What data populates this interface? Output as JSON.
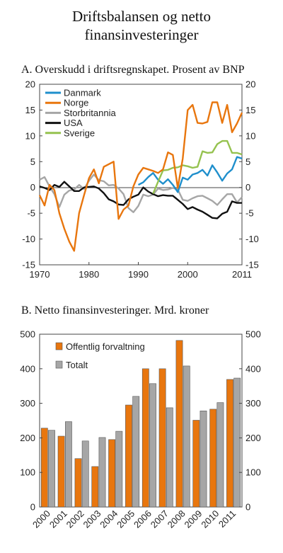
{
  "figure": {
    "title_line1": "Driftsbalansen og netto",
    "title_line2": "finansinvesteringer"
  },
  "chart_data": [
    {
      "type": "line",
      "title": "A.  Overskudd i driftsregnskapet. Prosent av BNP",
      "xlim": [
        1970,
        2011
      ],
      "ylim": [
        -15,
        20
      ],
      "x_ticks": [
        "1970",
        "1980",
        "1990",
        "2000",
        "2011"
      ],
      "y_ticks": [
        "-15",
        "-10",
        "-5",
        "0",
        "5",
        "10",
        "15",
        "20"
      ],
      "legend_position": "top-left",
      "grid": false,
      "series": [
        {
          "name": "Danmark",
          "color": "#1f8fcc",
          "x": [
            1990,
            1991,
            1992,
            1993,
            1994,
            1995,
            1996,
            1997,
            1998,
            1999,
            2000,
            2001,
            2002,
            2003,
            2004,
            2005,
            2006,
            2007,
            2008,
            2009,
            2010,
            2011
          ],
          "y": [
            0.5,
            1.0,
            2.0,
            2.8,
            1.5,
            0.7,
            1.6,
            0.5,
            -0.9,
            1.9,
            1.5,
            2.5,
            2.8,
            3.4,
            2.3,
            4.3,
            2.9,
            1.3,
            2.7,
            3.5,
            5.9,
            5.6
          ]
        },
        {
          "name": "Norge",
          "color": "#e8760e",
          "x": [
            1970,
            1971,
            1972,
            1973,
            1974,
            1975,
            1976,
            1977,
            1978,
            1979,
            1980,
            1981,
            1982,
            1983,
            1984,
            1985,
            1986,
            1987,
            1988,
            1989,
            1990,
            1991,
            1992,
            1993,
            1994,
            1995,
            1996,
            1997,
            1998,
            1999,
            2000,
            2001,
            2002,
            2003,
            2004,
            2005,
            2006,
            2007,
            2008,
            2009,
            2010,
            2011
          ],
          "y": [
            -1.5,
            -3.5,
            0.5,
            -0.5,
            -5,
            -8,
            -10.5,
            -12.3,
            -5,
            -1.5,
            1.8,
            3.5,
            0.8,
            4,
            4.5,
            5,
            -6.1,
            -4.3,
            -3.5,
            0.2,
            2.5,
            3.8,
            3.5,
            3.2,
            2.8,
            3.5,
            6.8,
            6.3,
            -0.1,
            5.6,
            15,
            16,
            12.5,
            12.4,
            12.7,
            16.5,
            16.5,
            12.5,
            16,
            10.7,
            12.4,
            14.5
          ]
        },
        {
          "name": "Storbritannia",
          "color": "#a6a6a6",
          "x": [
            1970,
            1971,
            1972,
            1973,
            1974,
            1975,
            1976,
            1977,
            1978,
            1979,
            1980,
            1981,
            1982,
            1983,
            1984,
            1985,
            1986,
            1987,
            1988,
            1989,
            1990,
            1991,
            1992,
            1993,
            1994,
            1995,
            1996,
            1997,
            1998,
            1999,
            2000,
            2001,
            2002,
            2003,
            2004,
            2005,
            2006,
            2007,
            2008,
            2009,
            2010,
            2011
          ],
          "y": [
            1.5,
            2.0,
            0.2,
            -1.3,
            -3.8,
            -1.4,
            -0.6,
            -0.4,
            0.5,
            -0.3,
            1.3,
            2.5,
            1.4,
            1.2,
            0.4,
            0.5,
            -0.2,
            -1.3,
            -4.0,
            -4.8,
            -3.6,
            -1.4,
            -1.7,
            -1.4,
            -0.2,
            -0.5,
            -0.4,
            -0.1,
            -0.4,
            -2.4,
            -2.6,
            -2.1,
            -1.7,
            -1.6,
            -2.1,
            -2.6,
            -3.4,
            -2.3,
            -1.3,
            -1.3,
            -2.9,
            -1.9
          ]
        },
        {
          "name": "USA",
          "color": "#111111",
          "x": [
            1970,
            1971,
            1972,
            1973,
            1974,
            1975,
            1976,
            1977,
            1978,
            1979,
            1980,
            1981,
            1982,
            1983,
            1984,
            1985,
            1986,
            1987,
            1988,
            1989,
            1990,
            1991,
            1992,
            1993,
            1994,
            1995,
            1996,
            1997,
            1998,
            1999,
            2000,
            2001,
            2002,
            2003,
            2004,
            2005,
            2006,
            2007,
            2008,
            2009,
            2010,
            2011
          ],
          "y": [
            0.2,
            -0.1,
            -0.5,
            0.5,
            0.1,
            1.1,
            0.2,
            -0.7,
            -0.7,
            0.0,
            0.1,
            0.2,
            -0.2,
            -1.1,
            -2.3,
            -2.7,
            -3.3,
            -3.4,
            -2.3,
            -1.8,
            -1.4,
            0.0,
            -0.8,
            -1.3,
            -1.7,
            -1.5,
            -1.6,
            -1.6,
            -2.4,
            -3.2,
            -4.2,
            -3.8,
            -4.3,
            -4.7,
            -5.3,
            -5.9,
            -6.0,
            -5.1,
            -4.7,
            -2.7,
            -3.0,
            -3.0
          ]
        },
        {
          "name": "Sverige",
          "color": "#95c24f",
          "x": [
            1993,
            1994,
            1995,
            1996,
            1997,
            1998,
            1999,
            2000,
            2001,
            2002,
            2003,
            2004,
            2005,
            2006,
            2007,
            2008,
            2009,
            2010,
            2011
          ],
          "y": [
            -1.2,
            1.1,
            3.3,
            3.4,
            3.8,
            3.9,
            4.3,
            4.1,
            3.8,
            4.0,
            7.0,
            6.7,
            6.8,
            8.4,
            9.0,
            9.0,
            6.7,
            6.7,
            6.4
          ]
        }
      ]
    },
    {
      "type": "bar",
      "title": "B.  Netto finansinvesteringer. Mrd. kroner",
      "categories": [
        "2000",
        "2001",
        "2002",
        "2003",
        "2004",
        "2005",
        "2006",
        "2007",
        "2008",
        "2009",
        "2010",
        "2011"
      ],
      "ylim": [
        0,
        500
      ],
      "y_ticks": [
        "0",
        "100",
        "200",
        "300",
        "400",
        "500"
      ],
      "legend_position": "top-left",
      "grid": false,
      "series": [
        {
          "name": "Offentlig forvaltning",
          "color": "#e8760e",
          "values": [
            228,
            205,
            140,
            117,
            195,
            295,
            400,
            400,
            482,
            251,
            283,
            369
          ]
        },
        {
          "name": "Totalt",
          "color": "#a6a6a6",
          "values": [
            222,
            247,
            191,
            201,
            219,
            320,
            357,
            287,
            408,
            278,
            302,
            373
          ]
        }
      ]
    }
  ]
}
